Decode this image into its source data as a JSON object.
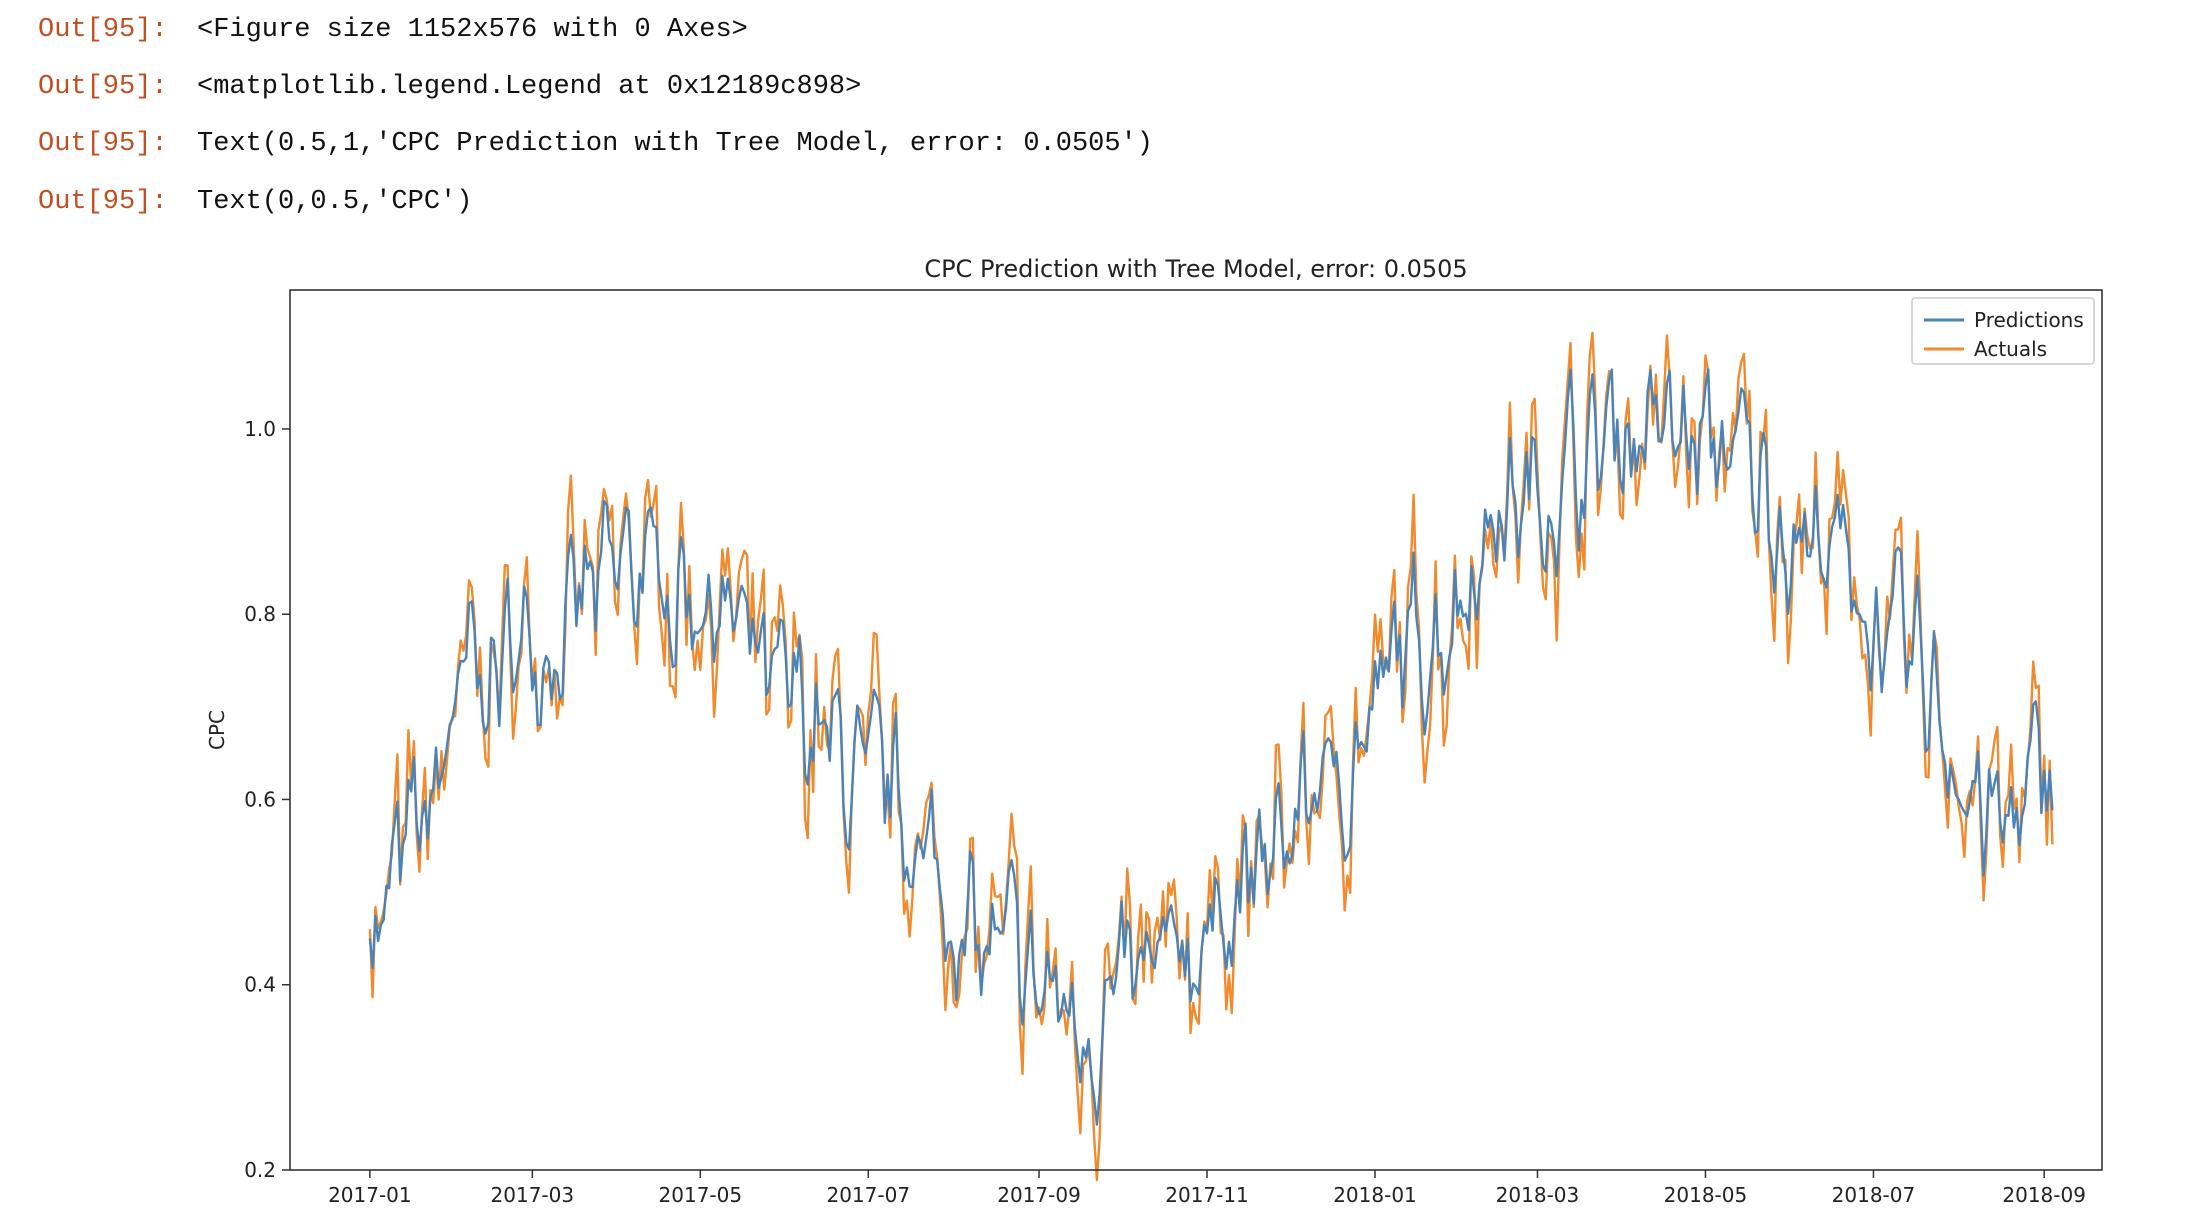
{
  "outputs": [
    {
      "prompt": "Out[95]:",
      "text": "<Figure size 1152x576 with 0 Axes>"
    },
    {
      "prompt": "Out[95]:",
      "text": "<matplotlib.legend.Legend at 0x12189c898>"
    },
    {
      "prompt": "Out[95]:",
      "text": "Text(0.5,1,'CPC Prediction with Tree Model, error: 0.0505')"
    },
    {
      "prompt": "Out[95]:",
      "text": "Text(0,0.5,'CPC')"
    }
  ],
  "colors": {
    "prompt": "#c24f22",
    "predictions": "#4a83b8",
    "actuals": "#f08a2c",
    "axes": "#333333"
  },
  "chart_data": {
    "type": "line",
    "title": "CPC Prediction with Tree Model, error: 0.0505",
    "xlabel": "",
    "ylabel": "CPC",
    "x_ticks": [
      "2017-01",
      "2017-03",
      "2017-05",
      "2017-07",
      "2017-09",
      "2017-11",
      "2018-01",
      "2018-03",
      "2018-05",
      "2018-07",
      "2018-09"
    ],
    "y_ticks": [
      "0.2",
      "0.4",
      "0.6",
      "0.8",
      "1.0"
    ],
    "ylim": [
      0.2,
      1.15
    ],
    "xlim": [
      "2016-12-03",
      "2018-09-22"
    ],
    "legend_position": "top-right",
    "x_start": "2017-01-01",
    "x_end": "2018-09-04",
    "x_step": "1 day",
    "series": [
      {
        "name": "Predictions",
        "color": "#4a83b8"
      },
      {
        "name": "Actuals",
        "color": "#f08a2c"
      }
    ],
    "key_points": [
      {
        "x": "2017-01-01",
        "y": 0.45
      },
      {
        "x": "2017-01-20",
        "y": 0.57
      },
      {
        "x": "2017-02-05",
        "y": 0.72
      },
      {
        "x": "2017-03-05",
        "y": 0.78
      },
      {
        "x": "2017-04-10",
        "y": 0.85
      },
      {
        "x": "2017-05-05",
        "y": 0.82
      },
      {
        "x": "2017-06-01",
        "y": 0.7
      },
      {
        "x": "2017-07-05",
        "y": 0.6
      },
      {
        "x": "2017-08-15",
        "y": 0.43
      },
      {
        "x": "2017-09-20",
        "y": 0.36
      },
      {
        "x": "2017-10-10",
        "y": 0.4
      },
      {
        "x": "2017-11-15",
        "y": 0.5
      },
      {
        "x": "2017-12-15",
        "y": 0.62
      },
      {
        "x": "2018-01-20",
        "y": 0.78
      },
      {
        "x": "2018-02-20",
        "y": 0.92
      },
      {
        "x": "2018-04-05",
        "y": 1.0
      },
      {
        "x": "2018-05-05",
        "y": 0.98
      },
      {
        "x": "2018-06-10",
        "y": 0.88
      },
      {
        "x": "2018-07-15",
        "y": 0.74
      },
      {
        "x": "2018-08-15",
        "y": 0.57
      },
      {
        "x": "2018-09-04",
        "y": 0.62
      }
    ]
  }
}
